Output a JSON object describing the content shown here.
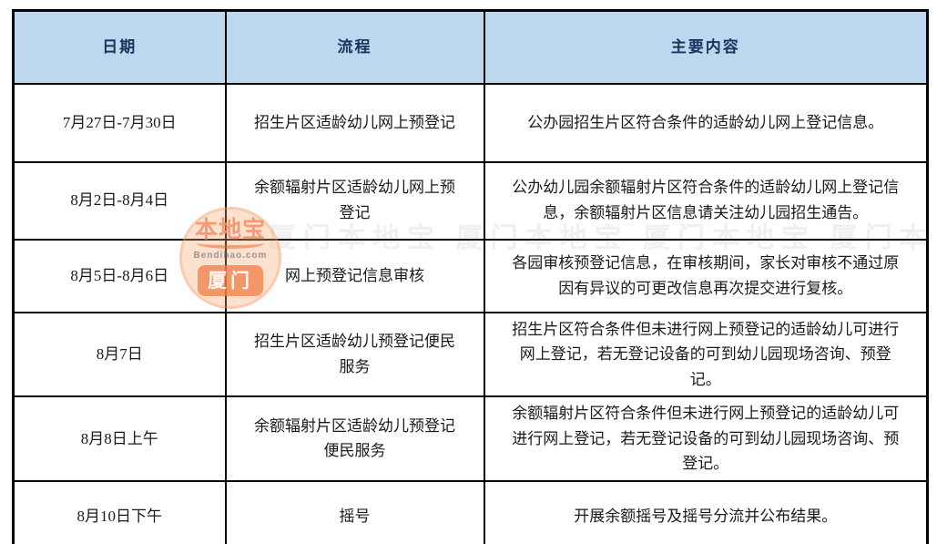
{
  "table": {
    "header_bg": "#bdd7ee",
    "headers": [
      "日期",
      "流程",
      "主要内容"
    ],
    "rows": [
      {
        "date": "7月27日-7月30日",
        "process": "招生片区适龄幼儿网上预登记",
        "content": "公办园招生片区符合条件的适龄幼儿网上登记信息。"
      },
      {
        "date": "8月2日-8月4日",
        "process": "余额辐射片区适龄幼儿网上预登记",
        "content": "公办幼儿园余额辐射片区符合条件的适龄幼儿网上登记信息，余额辐射片区信息请关注幼儿园招生通告。"
      },
      {
        "date": "8月5日-8月6日",
        "process": "网上预登记信息审核",
        "content": "各园审核预登记信息，在审核期间，家长对审核不通过原因有异议的可更改信息再次提交进行复核。"
      },
      {
        "date": "8月7日",
        "process": "招生片区适龄幼儿预登记便民服务",
        "content": "招生片区符合条件但未进行网上预登记的适龄幼儿可进行网上登记，若无登记设备的可到幼儿园现场咨询、预登记。"
      },
      {
        "date": "8月8日上午",
        "process": "余额辐射片区适龄幼儿预登记便民服务",
        "content": "余额辐射片区符合条件但未进行网上预登记的适龄幼儿可进行网上登记，若无登记设备的可到幼儿园现场咨询、预登记。"
      },
      {
        "date": "8月10日下午",
        "process": "摇号",
        "content": "开展余额摇号及摇号分流并公布结果。"
      }
    ]
  },
  "watermark": {
    "brand": "本地宝",
    "domain": "Bendibao.com",
    "city": "厦门",
    "faint_text": "厦门本地宝 厦门本地宝 厦门本地宝 厦门本地宝",
    "accent_orange": "#f2752f",
    "badge_orange": "#f27d46"
  }
}
